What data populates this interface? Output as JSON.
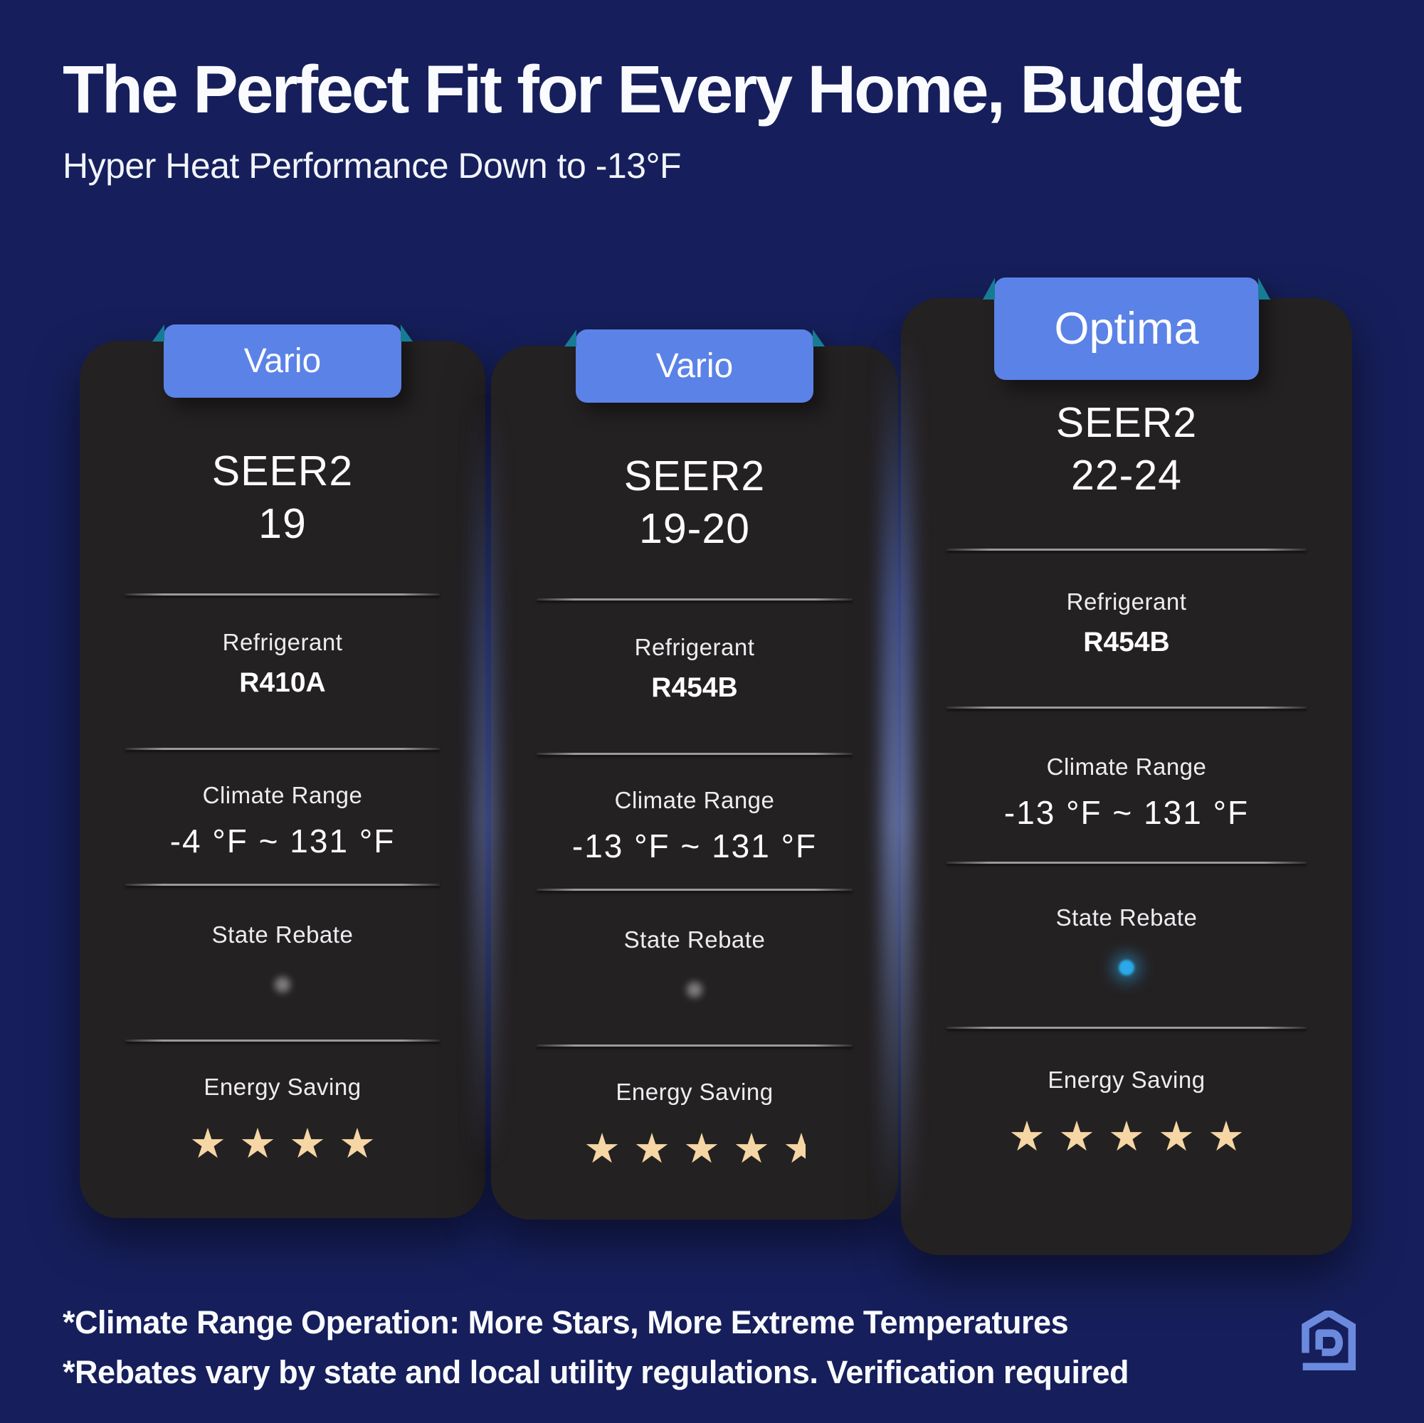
{
  "header": {
    "title": "The Perfect Fit for Every Home, Budget",
    "subtitle": "Hyper Heat Performance Down to -13°F"
  },
  "cards": [
    {
      "badge": "Vario",
      "seer": {
        "label": "SEER2",
        "value": "19"
      },
      "refrigerant": {
        "label": "Refrigerant",
        "value": "R410A"
      },
      "climate": {
        "label": "Climate Range",
        "value": "-4 °F ~ 131 °F"
      },
      "rebate": {
        "label": "State Rebate",
        "available": false
      },
      "energy": {
        "label": "Energy Saving",
        "stars": 4
      }
    },
    {
      "badge": "Vario",
      "seer": {
        "label": "SEER2",
        "value": "19-20"
      },
      "refrigerant": {
        "label": "Refrigerant",
        "value": "R454B"
      },
      "climate": {
        "label": "Climate Range",
        "value": "-13 °F ~ 131 °F"
      },
      "rebate": {
        "label": "State Rebate",
        "available": false
      },
      "energy": {
        "label": "Energy Saving",
        "stars": 4.5
      }
    },
    {
      "badge": "Optima",
      "seer": {
        "label": "SEER2",
        "value": "22-24"
      },
      "refrigerant": {
        "label": "Refrigerant",
        "value": "R454B"
      },
      "climate": {
        "label": "Climate Range",
        "value": "-13 °F ~ 131 °F"
      },
      "rebate": {
        "label": "State Rebate",
        "available": true
      },
      "energy": {
        "label": "Energy Saving",
        "stars": 5
      }
    }
  ],
  "footnotes": [
    "*Climate Range Operation: More Stars, More Extreme Temperatures",
    "*Rebates vary by state and local utility regulations. Verification required"
  ],
  "icons": {
    "star": "★",
    "logo": "house-with-d-monogram"
  },
  "colors": {
    "background": "#161f5b",
    "card": "#242122",
    "badge": "#5b82e6",
    "ribbon_fold": "#177c93",
    "star": "#f5d6a4",
    "rebate_active": "#2ba9e8",
    "rebate_inactive": "#8f8f8f",
    "logo": "#6b8ade"
  }
}
